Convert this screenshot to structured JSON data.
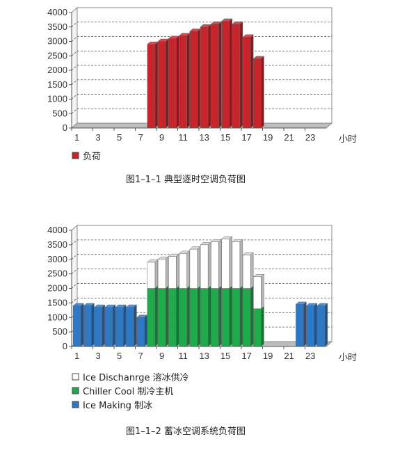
{
  "chart_data": [
    {
      "type": "bar",
      "title": "",
      "caption": "图1–1–1 典型逐时空调负荷图",
      "xlabel": "小时",
      "ylabel": "",
      "ylim": [
        0,
        4000
      ],
      "y_ticks": [
        "0",
        "500",
        "1000",
        "1500",
        "2000",
        "2500",
        "3000",
        "3500",
        "4000"
      ],
      "x_tick_labels": [
        "1",
        "3",
        "5",
        "7",
        "9",
        "11",
        "13",
        "15",
        "17",
        "19",
        "21",
        "23"
      ],
      "categories": [
        1,
        2,
        3,
        4,
        5,
        6,
        7,
        8,
        9,
        10,
        11,
        12,
        13,
        14,
        15,
        16,
        17,
        18,
        19,
        20,
        21,
        22,
        23,
        24
      ],
      "grid": true,
      "legend_position": "bottom-left",
      "series": [
        {
          "name": "负荷",
          "color": "#c8242b",
          "values": [
            0,
            0,
            0,
            0,
            0,
            0,
            0,
            2900,
            3000,
            3100,
            3200,
            3350,
            3500,
            3600,
            3700,
            3600,
            3150,
            2400,
            0,
            0,
            0,
            0,
            0,
            0
          ]
        }
      ]
    },
    {
      "type": "bar",
      "stacked": true,
      "title": "",
      "caption": "图1–1–2 蓄冰空调系统负荷图",
      "xlabel": "小时",
      "ylabel": "",
      "ylim": [
        0,
        4000
      ],
      "y_ticks": [
        "0",
        "500",
        "1000",
        "1500",
        "2000",
        "2500",
        "3000",
        "3500",
        "4000"
      ],
      "x_tick_labels": [
        "1",
        "3",
        "5",
        "7",
        "9",
        "11",
        "13",
        "15",
        "17",
        "19",
        "21",
        "23"
      ],
      "categories": [
        1,
        2,
        3,
        4,
        5,
        6,
        7,
        8,
        9,
        10,
        11,
        12,
        13,
        14,
        15,
        16,
        17,
        18,
        19,
        20,
        21,
        22,
        23,
        24
      ],
      "grid": true,
      "legend_position": "bottom-left",
      "series": [
        {
          "name": "Ice Making 制冰",
          "color": "#2f78c4",
          "values": [
            1400,
            1400,
            1350,
            1350,
            1350,
            1350,
            1000,
            0,
            0,
            0,
            0,
            0,
            0,
            0,
            0,
            0,
            0,
            0,
            0,
            0,
            0,
            1450,
            1400,
            1400
          ]
        },
        {
          "name": "Chiller Cool 制冷主机",
          "color": "#1faa4b",
          "values": [
            0,
            0,
            0,
            0,
            0,
            0,
            0,
            2000,
            2000,
            2000,
            2000,
            2000,
            2000,
            2000,
            2000,
            2000,
            2000,
            1300,
            0,
            0,
            0,
            0,
            0,
            0
          ]
        },
        {
          "name": "Ice Dischanrge 溶冰供冷",
          "color": "#ffffff",
          "values": [
            0,
            0,
            0,
            0,
            0,
            0,
            0,
            900,
            1000,
            1100,
            1200,
            1350,
            1500,
            1600,
            1700,
            1600,
            1150,
            1100,
            0,
            0,
            0,
            0,
            0,
            0
          ]
        }
      ]
    }
  ]
}
